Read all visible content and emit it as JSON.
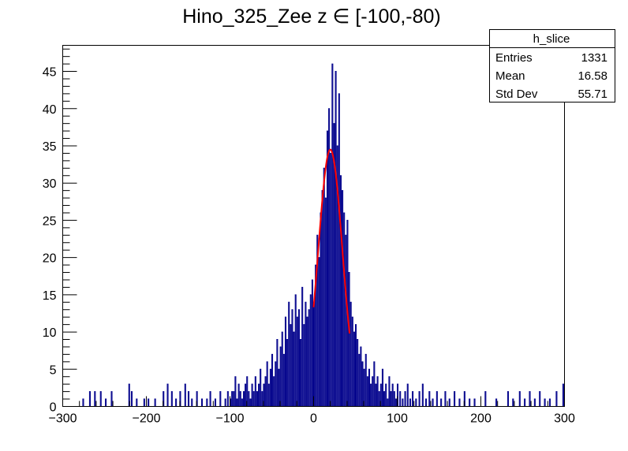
{
  "chart_data": {
    "type": "histogram",
    "title": "Hino_325_Zee z  ∈ [-100,-80)",
    "xlabel": "",
    "ylabel": "",
    "xlim": [
      -300,
      300
    ],
    "ylim": [
      0,
      48.5
    ],
    "x_ticks": [
      -300,
      -200,
      -100,
      0,
      100,
      200,
      300
    ],
    "x_tick_labels": [
      "−300",
      "−200",
      "−100",
      "0",
      "100",
      "200",
      "300"
    ],
    "y_ticks": [
      0,
      5,
      10,
      15,
      20,
      25,
      30,
      35,
      40,
      45
    ],
    "y_tick_labels": [
      "0",
      "5",
      "10",
      "15",
      "20",
      "25",
      "30",
      "35",
      "40",
      "45"
    ],
    "grid": false,
    "stats_box": {
      "name": "h_slice",
      "rows": [
        {
          "label": "Entries",
          "value": "1331"
        },
        {
          "label": "Mean",
          "value": "16.58"
        },
        {
          "label": "Std Dev",
          "value": "55.71"
        }
      ]
    },
    "histogram_color": "#00008b",
    "fit_color": "#ff0000",
    "bin_width": 1,
    "bins": [
      {
        "x": -276,
        "y": 1
      },
      {
        "x": -268,
        "y": 2
      },
      {
        "x": -262,
        "y": 2
      },
      {
        "x": -255,
        "y": 2
      },
      {
        "x": -249,
        "y": 1
      },
      {
        "x": -242,
        "y": 2
      },
      {
        "x": -221,
        "y": 3
      },
      {
        "x": -218,
        "y": 2
      },
      {
        "x": -212,
        "y": 1
      },
      {
        "x": -203,
        "y": 1
      },
      {
        "x": -198,
        "y": 1
      },
      {
        "x": -190,
        "y": 1
      },
      {
        "x": -180,
        "y": 2
      },
      {
        "x": -175,
        "y": 3
      },
      {
        "x": -170,
        "y": 2
      },
      {
        "x": -165,
        "y": 1
      },
      {
        "x": -160,
        "y": 2
      },
      {
        "x": -154,
        "y": 3
      },
      {
        "x": -150,
        "y": 2
      },
      {
        "x": -146,
        "y": 1
      },
      {
        "x": -140,
        "y": 2
      },
      {
        "x": -134,
        "y": 1
      },
      {
        "x": -128,
        "y": 1
      },
      {
        "x": -124,
        "y": 2
      },
      {
        "x": -118,
        "y": 1
      },
      {
        "x": -112,
        "y": 2
      },
      {
        "x": -106,
        "y": 1
      },
      {
        "x": -103,
        "y": 2
      },
      {
        "x": -100,
        "y": 1
      },
      {
        "x": -98,
        "y": 2
      },
      {
        "x": -96,
        "y": 2
      },
      {
        "x": -94,
        "y": 4
      },
      {
        "x": -92,
        "y": 1
      },
      {
        "x": -90,
        "y": 3
      },
      {
        "x": -88,
        "y": 2
      },
      {
        "x": -86,
        "y": 1
      },
      {
        "x": -84,
        "y": 2
      },
      {
        "x": -82,
        "y": 3
      },
      {
        "x": -80,
        "y": 4
      },
      {
        "x": -78,
        "y": 2
      },
      {
        "x": -76,
        "y": 1
      },
      {
        "x": -74,
        "y": 3
      },
      {
        "x": -72,
        "y": 2
      },
      {
        "x": -70,
        "y": 4
      },
      {
        "x": -68,
        "y": 2
      },
      {
        "x": -66,
        "y": 3
      },
      {
        "x": -64,
        "y": 5
      },
      {
        "x": -62,
        "y": 2
      },
      {
        "x": -60,
        "y": 3
      },
      {
        "x": -58,
        "y": 4
      },
      {
        "x": -56,
        "y": 6
      },
      {
        "x": -54,
        "y": 3
      },
      {
        "x": -52,
        "y": 5
      },
      {
        "x": -50,
        "y": 7
      },
      {
        "x": -48,
        "y": 4
      },
      {
        "x": -46,
        "y": 6
      },
      {
        "x": -44,
        "y": 9
      },
      {
        "x": -42,
        "y": 5
      },
      {
        "x": -40,
        "y": 8
      },
      {
        "x": -38,
        "y": 10
      },
      {
        "x": -36,
        "y": 7
      },
      {
        "x": -34,
        "y": 12
      },
      {
        "x": -32,
        "y": 9
      },
      {
        "x": -30,
        "y": 14
      },
      {
        "x": -28,
        "y": 11
      },
      {
        "x": -26,
        "y": 13
      },
      {
        "x": -24,
        "y": 10
      },
      {
        "x": -22,
        "y": 15
      },
      {
        "x": -20,
        "y": 12
      },
      {
        "x": -18,
        "y": 13
      },
      {
        "x": -16,
        "y": 9
      },
      {
        "x": -14,
        "y": 16
      },
      {
        "x": -12,
        "y": 11
      },
      {
        "x": -10,
        "y": 14
      },
      {
        "x": -8,
        "y": 12
      },
      {
        "x": -6,
        "y": 13
      },
      {
        "x": -4,
        "y": 15
      },
      {
        "x": -2,
        "y": 17
      },
      {
        "x": 0,
        "y": 14
      },
      {
        "x": 2,
        "y": 19
      },
      {
        "x": 4,
        "y": 23
      },
      {
        "x": 6,
        "y": 20
      },
      {
        "x": 8,
        "y": 26
      },
      {
        "x": 10,
        "y": 29
      },
      {
        "x": 12,
        "y": 32
      },
      {
        "x": 14,
        "y": 28
      },
      {
        "x": 16,
        "y": 37
      },
      {
        "x": 18,
        "y": 40
      },
      {
        "x": 20,
        "y": 34
      },
      {
        "x": 22,
        "y": 46
      },
      {
        "x": 24,
        "y": 38
      },
      {
        "x": 26,
        "y": 45
      },
      {
        "x": 28,
        "y": 35
      },
      {
        "x": 30,
        "y": 42
      },
      {
        "x": 32,
        "y": 31
      },
      {
        "x": 34,
        "y": 29
      },
      {
        "x": 36,
        "y": 26
      },
      {
        "x": 38,
        "y": 23
      },
      {
        "x": 40,
        "y": 25
      },
      {
        "x": 42,
        "y": 18
      },
      {
        "x": 44,
        "y": 14
      },
      {
        "x": 46,
        "y": 12
      },
      {
        "x": 48,
        "y": 10
      },
      {
        "x": 50,
        "y": 11
      },
      {
        "x": 52,
        "y": 9
      },
      {
        "x": 54,
        "y": 7
      },
      {
        "x": 56,
        "y": 8
      },
      {
        "x": 58,
        "y": 6
      },
      {
        "x": 60,
        "y": 5
      },
      {
        "x": 62,
        "y": 7
      },
      {
        "x": 64,
        "y": 4
      },
      {
        "x": 66,
        "y": 5
      },
      {
        "x": 68,
        "y": 3
      },
      {
        "x": 70,
        "y": 4
      },
      {
        "x": 72,
        "y": 6
      },
      {
        "x": 74,
        "y": 3
      },
      {
        "x": 76,
        "y": 4
      },
      {
        "x": 78,
        "y": 2
      },
      {
        "x": 80,
        "y": 3
      },
      {
        "x": 82,
        "y": 5
      },
      {
        "x": 84,
        "y": 2
      },
      {
        "x": 86,
        "y": 3
      },
      {
        "x": 88,
        "y": 1
      },
      {
        "x": 90,
        "y": 4
      },
      {
        "x": 92,
        "y": 2
      },
      {
        "x": 94,
        "y": 3
      },
      {
        "x": 96,
        "y": 2
      },
      {
        "x": 98,
        "y": 1
      },
      {
        "x": 100,
        "y": 3
      },
      {
        "x": 103,
        "y": 2
      },
      {
        "x": 106,
        "y": 1
      },
      {
        "x": 109,
        "y": 2
      },
      {
        "x": 112,
        "y": 3
      },
      {
        "x": 115,
        "y": 1
      },
      {
        "x": 118,
        "y": 2
      },
      {
        "x": 122,
        "y": 1
      },
      {
        "x": 126,
        "y": 2
      },
      {
        "x": 130,
        "y": 3
      },
      {
        "x": 134,
        "y": 1
      },
      {
        "x": 138,
        "y": 2
      },
      {
        "x": 142,
        "y": 1
      },
      {
        "x": 147,
        "y": 2
      },
      {
        "x": 152,
        "y": 1
      },
      {
        "x": 157,
        "y": 2
      },
      {
        "x": 162,
        "y": 1
      },
      {
        "x": 168,
        "y": 2
      },
      {
        "x": 174,
        "y": 1
      },
      {
        "x": 180,
        "y": 2
      },
      {
        "x": 186,
        "y": 1
      },
      {
        "x": 192,
        "y": 1
      },
      {
        "x": 205,
        "y": 2
      },
      {
        "x": 218,
        "y": 1
      },
      {
        "x": 232,
        "y": 2
      },
      {
        "x": 238,
        "y": 1
      },
      {
        "x": 246,
        "y": 2
      },
      {
        "x": 252,
        "y": 1
      },
      {
        "x": 258,
        "y": 2
      },
      {
        "x": 264,
        "y": 1
      },
      {
        "x": 270,
        "y": 2
      },
      {
        "x": 276,
        "y": 1
      },
      {
        "x": 282,
        "y": 1
      },
      {
        "x": 290,
        "y": 2
      },
      {
        "x": 298,
        "y": 3
      }
    ],
    "fit": {
      "type": "gaussian",
      "constant": 34.5,
      "mean": 20.0,
      "sigma": 14.5,
      "range": [
        0,
        43
      ]
    }
  }
}
